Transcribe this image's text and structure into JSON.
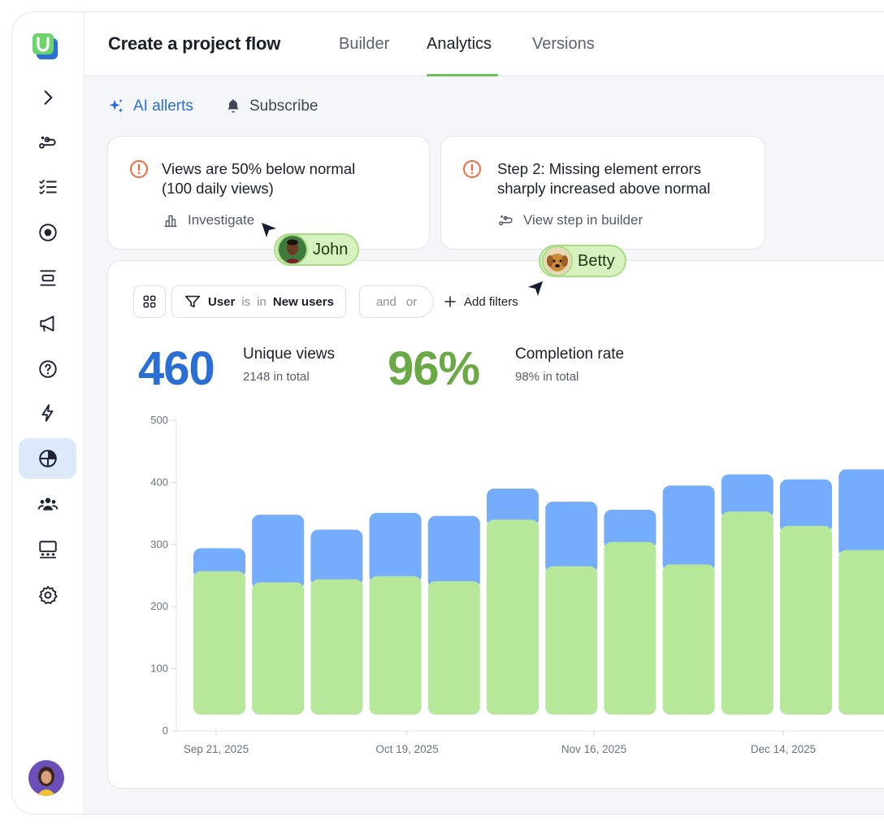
{
  "header": {
    "title": "Create a project flow",
    "tabs": [
      {
        "label": "Builder"
      },
      {
        "label": "Analytics"
      },
      {
        "label": "Versions"
      }
    ],
    "active_tab": "Analytics"
  },
  "actions": {
    "ai_alerts": "AI allerts",
    "subscribe": "Subscribe"
  },
  "alerts": [
    {
      "line1": "Views are 50% below normal",
      "line2": "(100 daily views)",
      "action": "Investigate"
    },
    {
      "line1": "Step 2: Missing element errors",
      "line2": "sharply increased above normal",
      "action": "View step in builder"
    }
  ],
  "filters": {
    "field": "User",
    "op1": "is",
    "op2": "in",
    "value": "New users",
    "and_label": "and",
    "or_label": "or",
    "add_label": "Add filters"
  },
  "kpis": {
    "views": {
      "value": "460",
      "label": "Unique views",
      "sub": "2148 in total"
    },
    "completion": {
      "value": "96%",
      "label": "Completion rate",
      "sub": "98% in total"
    }
  },
  "collaborators": [
    {
      "name": "John"
    },
    {
      "name": "Betty"
    }
  ],
  "colors": {
    "blue": "#2a6fd6",
    "green": "#6aaa45",
    "bar_blue": "#75acfb",
    "bar_green": "#b7e89a",
    "alert_orange": "#ef6b3d"
  },
  "chart_data": {
    "type": "bar",
    "stacked": true,
    "ylim": [
      0,
      500
    ],
    "yticks": [
      "0",
      "100",
      "200",
      "300",
      "400",
      "500"
    ],
    "xtick_labels": [
      "Sep 21, 2025",
      "Oct 19, 2025",
      "Nov 16, 2025",
      "Dec 14, 2025"
    ],
    "series": [
      {
        "values": [
          257,
          239,
          244,
          249,
          241,
          340,
          265,
          304,
          268,
          353,
          330,
          291
        ]
      },
      {
        "values": [
          37,
          109,
          80,
          102,
          105,
          50,
          104,
          52,
          127,
          60,
          75,
          130
        ]
      }
    ]
  }
}
